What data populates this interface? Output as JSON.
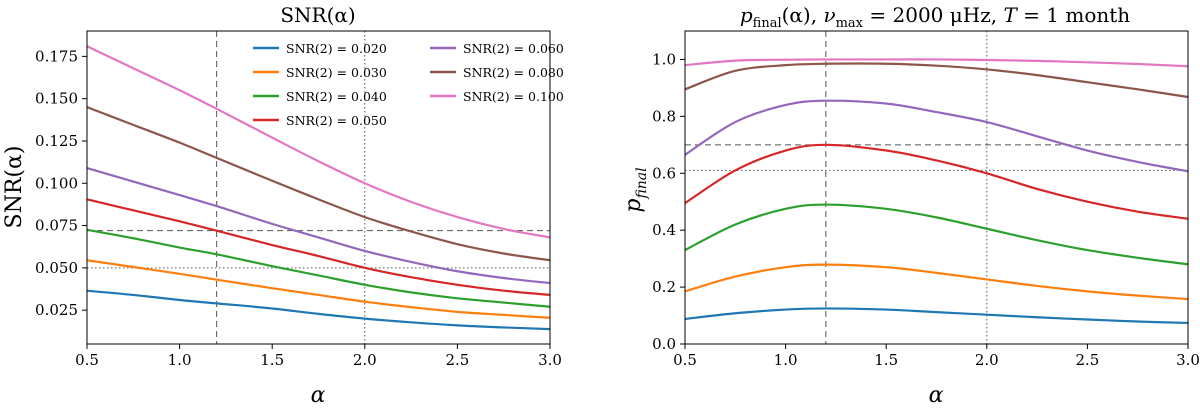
{
  "chart_data": [
    {
      "type": "line",
      "title": "SNR(α)",
      "xlabel": "α",
      "ylabel": "SNR(α)",
      "xlim": [
        0.5,
        3.0
      ],
      "ylim": [
        0.005,
        0.19
      ],
      "xticks": [
        0.5,
        1.0,
        1.5,
        2.0,
        2.5,
        3.0
      ],
      "xtick_labels": [
        "0.5",
        "1.0",
        "1.5",
        "2.0",
        "2.5",
        "3.0"
      ],
      "yticks": [
        0.025,
        0.05,
        0.075,
        0.1,
        0.125,
        0.15,
        0.175
      ],
      "ytick_labels": [
        "0.025",
        "0.050",
        "0.075",
        "0.100",
        "0.125",
        "0.150",
        "0.175"
      ],
      "vlines": [
        {
          "x": 1.2,
          "style": "dashed"
        },
        {
          "x": 2.0,
          "style": "dotted"
        }
      ],
      "hlines": [
        {
          "y": 0.072,
          "style": "dashed"
        },
        {
          "y": 0.05,
          "style": "dotted"
        }
      ],
      "legend_position": "top-right",
      "series": [
        {
          "name": "SNR(2) = 0.020",
          "color": "#1f77b4",
          "x": [
            0.5,
            0.75,
            1.0,
            1.2,
            1.5,
            1.75,
            2.0,
            2.25,
            2.5,
            2.75,
            3.0
          ],
          "values": [
            0.0365,
            0.034,
            0.031,
            0.029,
            0.026,
            0.0228,
            0.02,
            0.0178,
            0.016,
            0.0148,
            0.0138
          ]
        },
        {
          "name": "SNR(2) = 0.030",
          "color": "#ff7f0e",
          "x": [
            0.5,
            0.75,
            1.0,
            1.2,
            1.5,
            1.75,
            2.0,
            2.25,
            2.5,
            2.75,
            3.0
          ],
          "values": [
            0.0545,
            0.0505,
            0.0465,
            0.043,
            0.038,
            0.034,
            0.03,
            0.0268,
            0.024,
            0.0222,
            0.0205
          ]
        },
        {
          "name": "SNR(2) = 0.040",
          "color": "#2ca02c",
          "x": [
            0.5,
            0.75,
            1.0,
            1.2,
            1.5,
            1.75,
            2.0,
            2.25,
            2.5,
            2.75,
            3.0
          ],
          "values": [
            0.0725,
            0.0675,
            0.062,
            0.058,
            0.051,
            0.0455,
            0.04,
            0.0355,
            0.032,
            0.0295,
            0.027
          ]
        },
        {
          "name": "SNR(2) = 0.050",
          "color": "#d62728",
          "x": [
            0.5,
            0.75,
            1.0,
            1.2,
            1.5,
            1.75,
            2.0,
            2.25,
            2.5,
            2.75,
            3.0
          ],
          "values": [
            0.0905,
            0.084,
            0.0775,
            0.072,
            0.0635,
            0.057,
            0.05,
            0.0445,
            0.04,
            0.0365,
            0.034
          ]
        },
        {
          "name": "SNR(2) = 0.060",
          "color": "#9467bd",
          "x": [
            0.5,
            0.75,
            1.0,
            1.2,
            1.5,
            1.75,
            2.0,
            2.25,
            2.5,
            2.75,
            3.0
          ],
          "values": [
            0.109,
            0.101,
            0.093,
            0.0865,
            0.076,
            0.068,
            0.06,
            0.0535,
            0.048,
            0.044,
            0.041
          ]
        },
        {
          "name": "SNR(2) = 0.080",
          "color": "#8c564b",
          "x": [
            0.5,
            0.75,
            1.0,
            1.2,
            1.5,
            1.75,
            2.0,
            2.25,
            2.5,
            2.75,
            3.0
          ],
          "values": [
            0.145,
            0.1345,
            0.124,
            0.115,
            0.1015,
            0.0905,
            0.08,
            0.0715,
            0.064,
            0.0585,
            0.0545
          ]
        },
        {
          "name": "SNR(2) = 0.100",
          "color": "#e377c2",
          "x": [
            0.5,
            0.75,
            1.0,
            1.2,
            1.5,
            1.75,
            2.0,
            2.25,
            2.5,
            2.75,
            3.0
          ],
          "values": [
            0.181,
            0.168,
            0.155,
            0.144,
            0.127,
            0.113,
            0.1,
            0.089,
            0.08,
            0.073,
            0.068
          ]
        }
      ]
    },
    {
      "type": "line",
      "title": "p_final(α), ν_max = 2000 μHz, T = 1 month",
      "title_parts": {
        "p": "p",
        "final_sub": "final",
        "alpha": "(α), ",
        "nu": "ν",
        "max_sub": "max",
        "nu_value": " = 2000 μHz, ",
        "T": "T",
        "T_value": " = 1 month"
      },
      "xlabel": "α",
      "ylabel": "p_final",
      "ylabel_parts": {
        "p": "p",
        "sub": "final"
      },
      "xlim": [
        0.5,
        3.0
      ],
      "ylim": [
        0.0,
        1.1
      ],
      "xticks": [
        0.5,
        1.0,
        1.5,
        2.0,
        2.5,
        3.0
      ],
      "xtick_labels": [
        "0.5",
        "1.0",
        "1.5",
        "2.0",
        "2.5",
        "3.0"
      ],
      "yticks": [
        0.0,
        0.2,
        0.4,
        0.6,
        0.8,
        1.0
      ],
      "ytick_labels": [
        "0.0",
        "0.2",
        "0.4",
        "0.6",
        "0.8",
        "1.0"
      ],
      "vlines": [
        {
          "x": 1.2,
          "style": "dashed"
        },
        {
          "x": 2.0,
          "style": "dotted"
        }
      ],
      "hlines": [
        {
          "y": 0.7,
          "style": "dashed"
        },
        {
          "y": 0.61,
          "style": "dotted"
        }
      ],
      "series": [
        {
          "name": "SNR(2) = 0.020",
          "color": "#1f77b4",
          "x": [
            0.5,
            0.75,
            1.0,
            1.2,
            1.5,
            1.75,
            2.0,
            2.25,
            2.5,
            2.75,
            3.0
          ],
          "values": [
            0.088,
            0.108,
            0.121,
            0.125,
            0.121,
            0.112,
            0.103,
            0.094,
            0.086,
            0.079,
            0.074
          ]
        },
        {
          "name": "SNR(2) = 0.030",
          "color": "#ff7f0e",
          "x": [
            0.5,
            0.75,
            1.0,
            1.2,
            1.5,
            1.75,
            2.0,
            2.25,
            2.5,
            2.75,
            3.0
          ],
          "values": [
            0.185,
            0.237,
            0.27,
            0.279,
            0.27,
            0.25,
            0.227,
            0.204,
            0.185,
            0.17,
            0.158
          ]
        },
        {
          "name": "SNR(2) = 0.040",
          "color": "#2ca02c",
          "x": [
            0.5,
            0.75,
            1.0,
            1.2,
            1.5,
            1.75,
            2.0,
            2.25,
            2.5,
            2.75,
            3.0
          ],
          "values": [
            0.33,
            0.42,
            0.475,
            0.49,
            0.475,
            0.445,
            0.405,
            0.365,
            0.33,
            0.303,
            0.28
          ]
        },
        {
          "name": "SNR(2) = 0.050",
          "color": "#d62728",
          "x": [
            0.5,
            0.75,
            1.0,
            1.2,
            1.5,
            1.75,
            2.0,
            2.25,
            2.5,
            2.75,
            3.0
          ],
          "values": [
            0.495,
            0.61,
            0.68,
            0.7,
            0.68,
            0.645,
            0.6,
            0.545,
            0.5,
            0.465,
            0.44
          ]
        },
        {
          "name": "SNR(2) = 0.060",
          "color": "#9467bd",
          "x": [
            0.5,
            0.75,
            1.0,
            1.2,
            1.5,
            1.75,
            2.0,
            2.25,
            2.5,
            2.75,
            3.0
          ],
          "values": [
            0.665,
            0.78,
            0.84,
            0.855,
            0.845,
            0.815,
            0.78,
            0.73,
            0.68,
            0.64,
            0.607
          ]
        },
        {
          "name": "SNR(2) = 0.080",
          "color": "#8c564b",
          "x": [
            0.5,
            0.75,
            1.0,
            1.2,
            1.5,
            1.75,
            2.0,
            2.25,
            2.5,
            2.75,
            3.0
          ],
          "values": [
            0.895,
            0.96,
            0.98,
            0.985,
            0.985,
            0.978,
            0.965,
            0.945,
            0.92,
            0.895,
            0.868
          ]
        },
        {
          "name": "SNR(2) = 0.100",
          "color": "#e377c2",
          "x": [
            0.5,
            0.75,
            1.0,
            1.2,
            1.5,
            1.75,
            2.0,
            2.25,
            2.5,
            2.75,
            3.0
          ],
          "values": [
            0.98,
            0.996,
            0.999,
            1.0,
            1.0,
            1.0,
            0.998,
            0.995,
            0.99,
            0.984,
            0.976
          ]
        }
      ]
    }
  ]
}
